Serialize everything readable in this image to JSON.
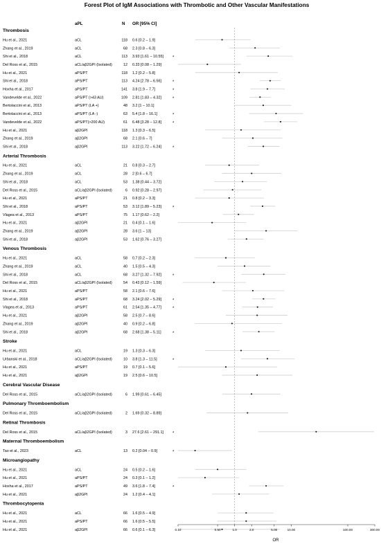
{
  "chart_data": {
    "type": "forest",
    "title": "Forest Plot of IgM Associations with Thrombotic and Other Vascular Manifestations",
    "headers": {
      "apl": "aPL",
      "n": "N",
      "or": "OR [95% CI]"
    },
    "xlabel": "OR",
    "xscale": "log",
    "xlim": [
      0.1,
      300
    ],
    "xticks": [
      0.1,
      0.5,
      1.0,
      2.0,
      5.0,
      10.0,
      100.0,
      300.0
    ],
    "xtick_labels": [
      "0.10",
      "0.50",
      "1.0",
      "2.0",
      "5.00",
      "10.00",
      "100.00",
      "300.00"
    ],
    "reference_line": 1.0,
    "groups": [
      {
        "name": "Thrombosis",
        "rows": [
          {
            "study": "Hu et al., 2021",
            "apl": "aCL",
            "n": "118",
            "or_text": "0.6 [0.2 – 1.9]",
            "or": 0.6,
            "lo": 0.2,
            "hi": 1.9,
            "sig": false
          },
          {
            "study": "Zhang et al., 2019",
            "apl": "aCL",
            "n": "68",
            "or_text": "2.3 [0.8 – 6.3]",
            "or": 2.3,
            "lo": 0.8,
            "hi": 6.3,
            "sig": false
          },
          {
            "study": "Shi et al., 2018",
            "apl": "aCL",
            "n": "113",
            "or_text": "3.93 [1.61 – 10.55]",
            "or": 3.93,
            "lo": 1.61,
            "hi": 10.55,
            "sig": true
          },
          {
            "study": "Del Ross et al., 2015",
            "apl": "aCL/aβ2GPI (Isolated)",
            "n": "12",
            "or_text": "0.33 [0.08 – 1.29]",
            "or": 0.33,
            "lo": 0.08,
            "hi": 1.29,
            "sig": false
          },
          {
            "study": "Hu et al., 2021",
            "apl": "aPS/PT",
            "n": "118",
            "or_text": "1.2 [0.2 – 5.8]",
            "or": 1.2,
            "lo": 0.2,
            "hi": 5.8,
            "sig": false
          },
          {
            "study": "Shi et al., 2018",
            "apl": "aPS/PT",
            "n": "113",
            "or_text": "4.24 [2.78 – 6.56]",
            "or": 4.24,
            "lo": 2.78,
            "hi": 6.56,
            "sig": true
          },
          {
            "study": "Hoxha et al., 2017",
            "apl": "aPS/PT",
            "n": "141",
            "or_text": "3.8 [1.9 – 7.7]",
            "or": 3.8,
            "lo": 1.9,
            "hi": 7.7,
            "sig": true
          },
          {
            "study": "Vandevelde et al., 2022",
            "apl": "aPS/PT (>43 AU)",
            "n": "109",
            "or_text": "2.81 [1.83 – 4.32]",
            "or": 2.81,
            "lo": 1.83,
            "hi": 4.32,
            "sig": true
          },
          {
            "study": "Bertolaccini et al., 2013",
            "apl": "aPS/PT (LA +)",
            "n": "48",
            "or_text": "3.2 [1 – 10.1]",
            "or": 3.2,
            "lo": 1,
            "hi": 10.1,
            "sig": false
          },
          {
            "study": "Bertolaccini et al., 2013",
            "apl": "aPS/PT (LA -)",
            "n": "63",
            "or_text": "5.4 [1.8 – 16.1]",
            "or": 5.4,
            "lo": 1.8,
            "hi": 16.1,
            "sig": true
          },
          {
            "study": "Vandevelde et al., 2022",
            "apl": "aPS/PT(>200 AU)",
            "n": "61",
            "or_text": "6.48 [3.28 – 12.8]",
            "or": 6.48,
            "lo": 3.28,
            "hi": 12.8,
            "sig": true
          },
          {
            "study": "Hu et al., 2021",
            "apl": "aβ2GPI",
            "n": "118",
            "or_text": "1.3 [0.3 – 6.5]",
            "or": 1.3,
            "lo": 0.3,
            "hi": 6.5,
            "sig": false
          },
          {
            "study": "Zhang et al., 2019",
            "apl": "aβ2GPI",
            "n": "68",
            "or_text": "2.1 [0.6 – 7]",
            "or": 2.1,
            "lo": 0.6,
            "hi": 7,
            "sig": false
          },
          {
            "study": "Shi et al., 2018",
            "apl": "aβ2GPI",
            "n": "113",
            "or_text": "3.22 [1.72 – 6.24]",
            "or": 3.22,
            "lo": 1.72,
            "hi": 6.24,
            "sig": true
          }
        ]
      },
      {
        "name": "Arterial Thrombosis",
        "rows": [
          {
            "study": "Hu et al., 2021",
            "apl": "aCL",
            "n": "21",
            "or_text": "0.8 [0.3 – 2.7]",
            "or": 0.8,
            "lo": 0.3,
            "hi": 2.7,
            "sig": false
          },
          {
            "study": "Zhang et al., 2019",
            "apl": "aCL",
            "n": "28",
            "or_text": "2 [0.6 – 6.7]",
            "or": 2,
            "lo": 0.6,
            "hi": 6.7,
            "sig": false
          },
          {
            "study": "Shi et al., 2018",
            "apl": "aCL",
            "n": "53",
            "or_text": "1.38 [0.44 – 3.72]",
            "or": 1.38,
            "lo": 0.44,
            "hi": 3.72,
            "sig": false
          },
          {
            "study": "Del Ross et al., 2015",
            "apl": "aCL/aβ2GPI (Isolated)",
            "n": "6",
            "or_text": "0.92 [0.28 – 2.97]",
            "or": 0.92,
            "lo": 0.28,
            "hi": 2.97,
            "sig": false
          },
          {
            "study": "Hu et al., 2021",
            "apl": "aPS/PT",
            "n": "21",
            "or_text": "0.8 [0.2 – 3.3]",
            "or": 0.8,
            "lo": 0.2,
            "hi": 3.3,
            "sig": false
          },
          {
            "study": "Shi et al., 2018",
            "apl": "aPS/PT",
            "n": "53",
            "or_text": "3.12 [1.89 – 5.23]",
            "or": 3.12,
            "lo": 1.89,
            "hi": 5.23,
            "sig": true
          },
          {
            "study": "Vlagea et al., 2013",
            "apl": "aPS/PT",
            "n": "75",
            "or_text": "1.17 [0.62 – 2.2]",
            "or": 1.17,
            "lo": 0.62,
            "hi": 2.2,
            "sig": false
          },
          {
            "study": "Hu et al., 2021",
            "apl": "aβ2GPI",
            "n": "21",
            "or_text": "0.4 [0.1 – 1.6]",
            "or": 0.4,
            "lo": 0.1,
            "hi": 1.6,
            "sig": false
          },
          {
            "study": "Zhang et al., 2019",
            "apl": "aβ2GPI",
            "n": "28",
            "or_text": "3.6 [1 – 13]",
            "or": 3.6,
            "lo": 1,
            "hi": 13,
            "sig": false
          },
          {
            "study": "Shi et al., 2018",
            "apl": "aβ2GPI",
            "n": "53",
            "or_text": "1.62 [0.76 – 3.27]",
            "or": 1.62,
            "lo": 0.76,
            "hi": 3.27,
            "sig": false
          }
        ]
      },
      {
        "name": "Venous Thrombosis",
        "rows": [
          {
            "study": "Hu et al., 2021",
            "apl": "aCL",
            "n": "58",
            "or_text": "0.7 [0.2 – 2.3]",
            "or": 0.7,
            "lo": 0.2,
            "hi": 2.3,
            "sig": false
          },
          {
            "study": "Zhang et al., 2019",
            "apl": "aCL",
            "n": "40",
            "or_text": "1.5 [0.5 – 4.3]",
            "or": 1.5,
            "lo": 0.5,
            "hi": 4.3,
            "sig": false
          },
          {
            "study": "Shi et al., 2018",
            "apl": "aCL",
            "n": "68",
            "or_text": "3.27 [1.32 – 7.92]",
            "or": 3.27,
            "lo": 1.32,
            "hi": 7.92,
            "sig": true
          },
          {
            "study": "Del Ross et al., 2015",
            "apl": "aCL/aβ2GPI (Isolated)",
            "n": "54",
            "or_text": "0.43 [0.12 – 1.59]",
            "or": 0.43,
            "lo": 0.12,
            "hi": 1.59,
            "sig": false
          },
          {
            "study": "Hu et al., 2021",
            "apl": "aPS/PT",
            "n": "58",
            "or_text": "2.1 [0.6 – 7.6]",
            "or": 2.1,
            "lo": 0.6,
            "hi": 7.6,
            "sig": false
          },
          {
            "study": "Shi et al., 2018",
            "apl": "aPS/PT",
            "n": "68",
            "or_text": "3.24 [2.02 – 5.29]",
            "or": 3.24,
            "lo": 2.02,
            "hi": 5.29,
            "sig": true
          },
          {
            "study": "Vlagea et al., 2013",
            "apl": "aPS/PT",
            "n": "61",
            "or_text": "2.54 [1.35 – 4.77]",
            "or": 2.54,
            "lo": 1.35,
            "hi": 4.77,
            "sig": true
          },
          {
            "study": "Hu et al., 2021",
            "apl": "aβ2GPI",
            "n": "58",
            "or_text": "2.5 [0.7 – 8.6]",
            "or": 2.5,
            "lo": 0.7,
            "hi": 8.6,
            "sig": false
          },
          {
            "study": "Zhang et al., 2019",
            "apl": "aβ2GPI",
            "n": "40",
            "or_text": "0.9 [0.2 – 6.8]",
            "or": 0.9,
            "lo": 0.2,
            "hi": 6.8,
            "sig": false
          },
          {
            "study": "Shi et al., 2018",
            "apl": "aβ2GPI",
            "n": "68",
            "or_text": "2.68 [1.38 – 5.11]",
            "or": 2.68,
            "lo": 1.38,
            "hi": 5.11,
            "sig": true
          }
        ]
      },
      {
        "name": "Stroke",
        "rows": [
          {
            "study": "Hu et al., 2021",
            "apl": "aCL",
            "n": "19",
            "or_text": "1.3 [0.3 – 6.3]",
            "or": 1.3,
            "lo": 0.3,
            "hi": 6.3,
            "sig": false
          },
          {
            "study": "Urbanski et al., 2018",
            "apl": "aCL/aβ2GPI (Isolated)",
            "n": "10",
            "or_text": "3.8 [1.3 – 11.5]",
            "or": 3.8,
            "lo": 1.3,
            "hi": 11.5,
            "sig": true
          },
          {
            "study": "Hu et al., 2021",
            "apl": "aPS/PT",
            "n": "19",
            "or_text": "0.7 [0.1 – 5.6]",
            "or": 0.7,
            "lo": 0.1,
            "hi": 5.6,
            "sig": false
          },
          {
            "study": "Hu et al., 2021",
            "apl": "aβ2GPI",
            "n": "19",
            "or_text": "2.5 [0.6 – 10.5]",
            "or": 2.5,
            "lo": 0.6,
            "hi": 10.5,
            "sig": false
          }
        ]
      },
      {
        "name": "Cerebral Vascular Disease",
        "rows": [
          {
            "study": "Del Ross et al., 2015",
            "apl": "aCL/aβ2GPI (Isolated)",
            "n": "6",
            "or_text": "1.99 [0.61 – 6.45]",
            "or": 1.99,
            "lo": 0.61,
            "hi": 6.45,
            "sig": false
          }
        ]
      },
      {
        "name": "Pulmonary Thromboembolism",
        "rows": [
          {
            "study": "Del Ross et al., 2015",
            "apl": "aCL/aβ2GPI (Isolated)",
            "n": "2",
            "or_text": "1.69 [0.32 – 8.89]",
            "or": 1.69,
            "lo": 0.32,
            "hi": 8.89,
            "sig": false
          }
        ]
      },
      {
        "name": "Retinal Thrombosis",
        "rows": [
          {
            "study": "Del Ross et al., 2015",
            "apl": "aCL/aβ2GPI (Isolated)",
            "n": "3",
            "or_text": "27.6 [2.61 – 291.1]",
            "or": 27.6,
            "lo": 2.61,
            "hi": 291.1,
            "sig": true
          }
        ]
      },
      {
        "name": "Maternal Thromboembolism",
        "rows": [
          {
            "study": "Tao et al., 2023",
            "apl": "aCL",
            "n": "13",
            "or_text": "0.2 [0.04 – 0.9]",
            "or": 0.2,
            "lo": 0.04,
            "hi": 0.9,
            "sig": true
          }
        ]
      },
      {
        "name": "Microangiopathy",
        "rows": [
          {
            "study": "Hu et al., 2021",
            "apl": "aCL",
            "n": "24",
            "or_text": "0.5 [0.2 – 1.6]",
            "or": 0.5,
            "lo": 0.2,
            "hi": 1.6,
            "sig": false
          },
          {
            "study": "Hu et al., 2021",
            "apl": "aPS/PT",
            "n": "24",
            "or_text": "0.3 [0.1 – 1.2]",
            "or": 0.3,
            "lo": 0.1,
            "hi": 1.2,
            "sig": false
          },
          {
            "study": "Hoxha et al., 2017",
            "apl": "aPS/PT",
            "n": "49",
            "or_text": "3.6 [1.8 – 7.4]",
            "or": 3.6,
            "lo": 1.8,
            "hi": 7.4,
            "sig": true
          },
          {
            "study": "Hu et al., 2021",
            "apl": "aβ2GPI",
            "n": "24",
            "or_text": "1.2 [0.4 – 4.1]",
            "or": 1.2,
            "lo": 0.4,
            "hi": 4.1,
            "sig": false
          }
        ]
      },
      {
        "name": "Thrombocytopenia",
        "rows": [
          {
            "study": "Hu et al., 2021",
            "apl": "aCL",
            "n": "66",
            "or_text": "1.6 [0.5 – 4.9]",
            "or": 1.6,
            "lo": 0.5,
            "hi": 4.9,
            "sig": false
          },
          {
            "study": "Hu et al., 2021",
            "apl": "aPS/PT",
            "n": "66",
            "or_text": "1.6 [0.5 – 5.5]",
            "or": 1.6,
            "lo": 0.5,
            "hi": 5.5,
            "sig": false
          },
          {
            "study": "Hu et al., 2021",
            "apl": "aβ2GPI",
            "n": "66",
            "or_text": "0.6 [0.1 – 6.3]",
            "or": 0.6,
            "lo": 0.1,
            "hi": 6.3,
            "sig": false
          }
        ]
      }
    ],
    "colors": {
      "ci_line": "#cfcfcf",
      "point": "#111111",
      "reference": "#999999",
      "text": "#111111"
    }
  }
}
